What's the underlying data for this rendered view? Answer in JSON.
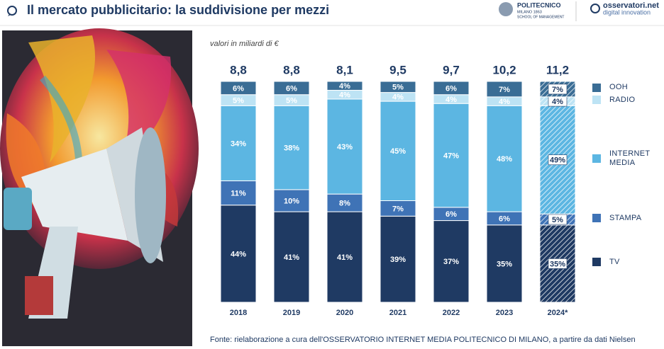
{
  "header": {
    "title": "Il mercato pubblicitario: la suddivisione per mezzi",
    "logo1_name": "POLITECNICO",
    "logo1_sub": "MILANO 1863",
    "logo1_school": "SCHOOL OF MANAGEMENT",
    "logo2_name": "osservatori.net",
    "logo2_sub": "digital innovation"
  },
  "chart_data": {
    "type": "stacked_bar",
    "subtitle": "valori in miliardi di €",
    "source": "Fonte: rielaborazione a cura dell'OSSERVATORIO INTERNET MEDIA POLITECNICO DI MILANO, a partire da dati Nielsen",
    "categories": [
      "2018",
      "2019",
      "2020",
      "2021",
      "2022",
      "2023",
      "2024*"
    ],
    "ylim": [
      0,
      100
    ],
    "totals": {
      "values": [
        8.8,
        8.8,
        8.1,
        9.5,
        9.7,
        10.2,
        11.2
      ],
      "value_labels": [
        "8,8",
        "8,8",
        "8,1",
        "9,5",
        "9,7",
        "10,2",
        "11,2"
      ]
    },
    "series": [
      {
        "name": "TV",
        "color": "#1f3a63",
        "values": [
          44,
          41,
          41,
          39,
          37,
          35,
          35
        ],
        "value_labels": [
          "44%",
          "41%",
          "41%",
          "39%",
          "37%",
          "35%",
          "35%"
        ]
      },
      {
        "name": "STAMPA",
        "color": "#3f73b6",
        "values": [
          11,
          10,
          8,
          7,
          6,
          6,
          5
        ],
        "value_labels": [
          "11%",
          "10%",
          "8%",
          "7%",
          "6%",
          "6%",
          "5%"
        ]
      },
      {
        "name": "INTERNET MEDIA",
        "color": "#5cb6e2",
        "values": [
          34,
          38,
          43,
          45,
          47,
          48,
          49
        ],
        "value_labels": [
          "34%",
          "38%",
          "43%",
          "45%",
          "47%",
          "48%",
          "49%"
        ]
      },
      {
        "name": "RADIO",
        "color": "#bde3f4",
        "values": [
          5,
          5,
          4,
          4,
          4,
          4,
          4
        ],
        "value_labels": [
          "5%",
          "5%",
          "4%",
          "4%",
          "4%",
          "4%",
          "4%"
        ]
      },
      {
        "name": "OOH",
        "color": "#3a6d95",
        "values": [
          6,
          6,
          4,
          5,
          6,
          7,
          7
        ],
        "value_labels": [
          "6%",
          "6%",
          "4%",
          "5%",
          "6%",
          "7%",
          "7%"
        ]
      }
    ],
    "hatched_categories": [
      "2024*"
    ]
  }
}
